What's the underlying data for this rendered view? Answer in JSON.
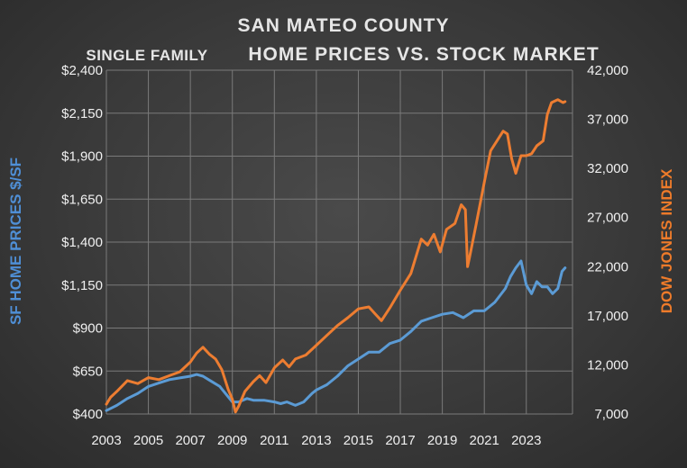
{
  "chart_data": {
    "type": "line",
    "title_line1": "SAN MATEO COUNTY",
    "title_line2_a": "SINGLE FAMILY",
    "title_line2_b": "HOME PRICES VS. STOCK MARKET",
    "ylabel_left": "SF HOME PRICES $/SF",
    "ylabel_right": "DOW JONES INDEX",
    "x_ticks": [
      "2003",
      "2005",
      "2007",
      "2009",
      "2011",
      "2013",
      "2015",
      "2017",
      "2019",
      "2021",
      "2023"
    ],
    "x_range": [
      2003,
      2025.2
    ],
    "y_left_ticks": [
      "$400",
      "$650",
      "$900",
      "$1,150",
      "$1,400",
      "$1,650",
      "$1,900",
      "$2,150",
      "$2,400"
    ],
    "y_left_range": [
      400,
      2400
    ],
    "y_right_ticks": [
      "7,000",
      "12,000",
      "17,000",
      "22,000",
      "27,000",
      "32,000",
      "37,000",
      "42,000"
    ],
    "y_right_range": [
      7000,
      42000
    ],
    "grid": true,
    "colors": {
      "home_prices": "#5b9bd5",
      "dow_jones": "#ed7d31"
    },
    "series": [
      {
        "key": "home_prices",
        "axis": "left",
        "x": [
          2003.0,
          2003.5,
          2004.0,
          2004.5,
          2005.0,
          2005.5,
          2006.0,
          2006.5,
          2007.0,
          2007.3,
          2007.6,
          2008.0,
          2008.4,
          2008.8,
          2009.0,
          2009.3,
          2009.7,
          2010.0,
          2010.5,
          2011.0,
          2011.3,
          2011.6,
          2012.0,
          2012.4,
          2012.8,
          2013.0,
          2013.5,
          2014.0,
          2014.5,
          2015.0,
          2015.5,
          2016.0,
          2016.5,
          2017.0,
          2017.5,
          2018.0,
          2018.5,
          2019.0,
          2019.5,
          2020.0,
          2020.5,
          2021.0,
          2021.5,
          2022.0,
          2022.25,
          2022.5,
          2022.75,
          2023.0,
          2023.25,
          2023.5,
          2023.75,
          2024.0,
          2024.25,
          2024.5,
          2024.7,
          2024.85
        ],
        "y": [
          420,
          450,
          490,
          520,
          560,
          580,
          600,
          610,
          620,
          630,
          620,
          590,
          560,
          500,
          470,
          470,
          490,
          480,
          480,
          470,
          460,
          470,
          450,
          470,
          520,
          540,
          570,
          620,
          680,
          720,
          760,
          760,
          810,
          830,
          880,
          940,
          960,
          980,
          990,
          960,
          1000,
          1000,
          1050,
          1130,
          1200,
          1250,
          1290,
          1150,
          1100,
          1170,
          1140,
          1140,
          1100,
          1130,
          1230,
          1250
        ]
      },
      {
        "key": "dow_jones",
        "axis": "right",
        "x": [
          2003.0,
          2003.2,
          2003.5,
          2004.0,
          2004.5,
          2005.0,
          2005.5,
          2006.0,
          2006.5,
          2007.0,
          2007.3,
          2007.6,
          2007.9,
          2008.2,
          2008.5,
          2008.8,
          2009.0,
          2009.15,
          2009.3,
          2009.6,
          2010.0,
          2010.3,
          2010.6,
          2011.0,
          2011.4,
          2011.7,
          2012.0,
          2012.5,
          2013.0,
          2013.5,
          2014.0,
          2014.5,
          2015.0,
          2015.5,
          2015.8,
          2016.1,
          2016.5,
          2017.0,
          2017.5,
          2018.0,
          2018.3,
          2018.6,
          2018.9,
          2019.2,
          2019.6,
          2019.9,
          2020.1,
          2020.2,
          2020.3,
          2020.6,
          2021.0,
          2021.3,
          2021.6,
          2021.9,
          2022.1,
          2022.3,
          2022.5,
          2022.75,
          2023.0,
          2023.25,
          2023.5,
          2023.8,
          2024.0,
          2024.2,
          2024.5,
          2024.75,
          2024.85
        ],
        "y": [
          8000,
          8700,
          9300,
          10400,
          10100,
          10700,
          10500,
          10900,
          11300,
          12300,
          13200,
          13800,
          13100,
          12600,
          11500,
          9500,
          8500,
          7200,
          7800,
          9300,
          10300,
          10900,
          10200,
          11700,
          12500,
          11800,
          12600,
          13000,
          14000,
          15000,
          16000,
          16800,
          17700,
          17900,
          17200,
          16500,
          17800,
          19600,
          21300,
          24800,
          24200,
          25300,
          23500,
          25800,
          26400,
          28300,
          27800,
          22000,
          23000,
          26200,
          30600,
          33800,
          34800,
          35800,
          35500,
          33000,
          31500,
          33300,
          33300,
          33500,
          34300,
          34800,
          37500,
          38700,
          39000,
          38700,
          38800
        ]
      }
    ]
  }
}
